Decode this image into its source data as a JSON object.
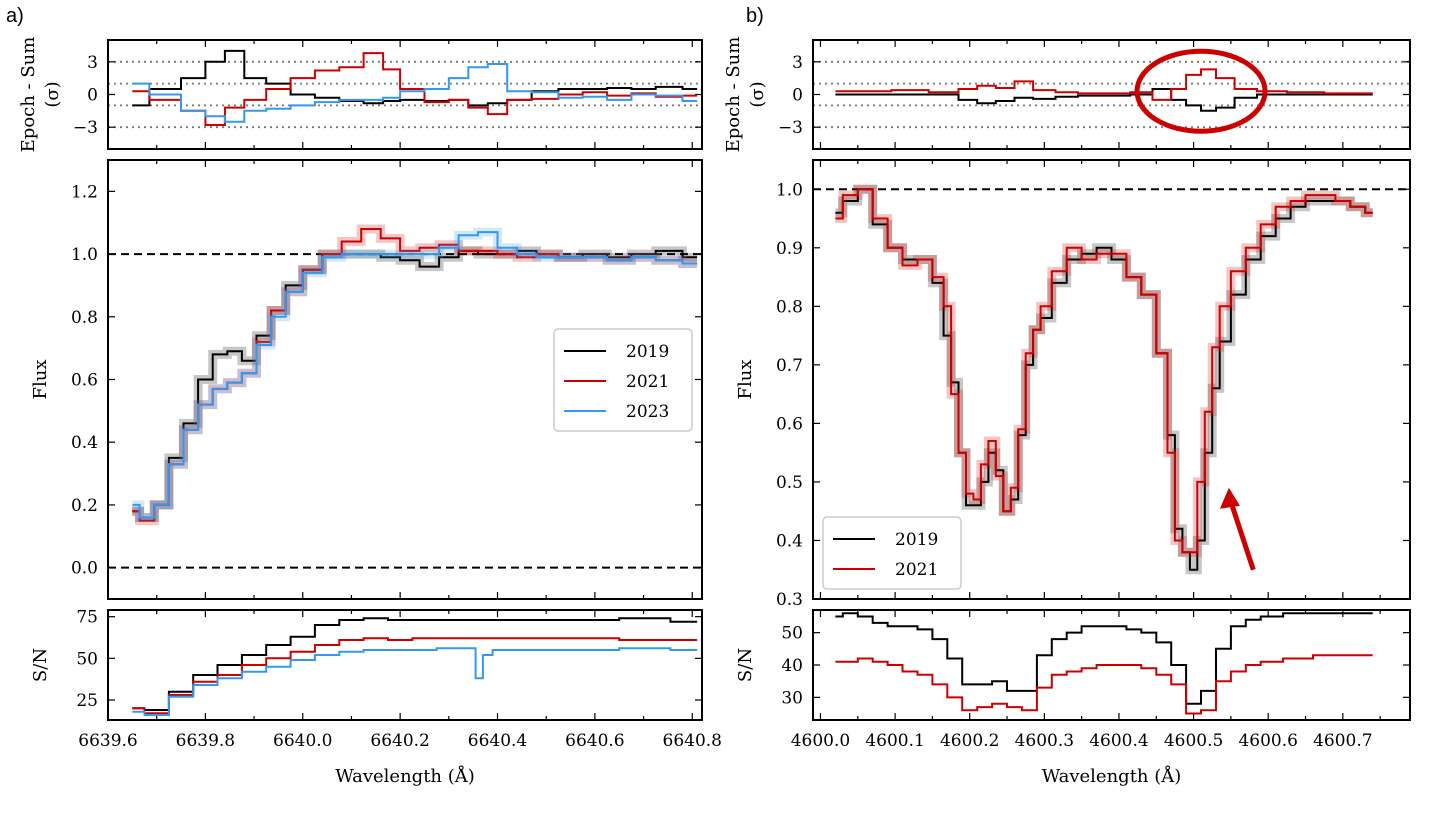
{
  "figure": {
    "panels": [
      "a)",
      "b)"
    ]
  },
  "colors": {
    "y2019": "#000000",
    "y2021": "#cc0000",
    "y2023": "#3399ee"
  },
  "chart_data": [
    {
      "id": "a-residual",
      "type": "line",
      "ylabel": "Epoch - Sum",
      "ylabel2": "(σ)",
      "xlim": [
        6639.6,
        6640.82
      ],
      "ylim": [
        -5,
        5
      ],
      "yticks": [
        {
          "v": 3,
          "t": "3"
        },
        {
          "v": 0,
          "t": "0"
        },
        {
          "v": -3,
          "t": "−3"
        }
      ],
      "hlines": [
        {
          "y": 3,
          "style": "dotted"
        },
        {
          "y": 1,
          "style": "dotted"
        },
        {
          "y": -1,
          "style": "dotted"
        },
        {
          "y": -3,
          "style": "dotted"
        }
      ],
      "x": [
        6639.65,
        6639.72,
        6639.78,
        6639.82,
        6639.86,
        6639.9,
        6639.95,
        6640.0,
        6640.05,
        6640.1,
        6640.15,
        6640.18,
        6640.22,
        6640.28,
        6640.32,
        6640.36,
        6640.4,
        6640.44,
        6640.5,
        6640.55,
        6640.6,
        6640.65,
        6640.7,
        6640.75,
        6640.81
      ],
      "series": [
        {
          "name": "2019",
          "color": "#000000",
          "values": [
            -1,
            0.5,
            1.5,
            3,
            4,
            1.5,
            1,
            0,
            -0.3,
            -0.6,
            -0.8,
            -0.6,
            -0.5,
            -0.6,
            -0.5,
            -1,
            -0.8,
            -0.5,
            0.3,
            0.5,
            0.5,
            0.6,
            0.5,
            0.7,
            0.5
          ]
        },
        {
          "name": "2021",
          "color": "#cc0000",
          "values": [
            0.3,
            -0.5,
            -1.5,
            -2.8,
            -1.2,
            -0.5,
            0.5,
            1.5,
            2.2,
            2.5,
            3.8,
            2.3,
            0.5,
            -0.7,
            -0.5,
            -1.2,
            -1.8,
            -0.5,
            -0.4,
            0,
            0.2,
            -0.1,
            0.1,
            -0.2,
            -0.1
          ]
        },
        {
          "name": "2023",
          "color": "#3399ee",
          "values": [
            1,
            0,
            -1.5,
            -2,
            -2.5,
            -1.5,
            -1.3,
            -1,
            -0.7,
            -0.5,
            -0.5,
            -0.3,
            0.3,
            0.5,
            1.5,
            2.5,
            2.8,
            0.3,
            0.2,
            -0.3,
            -0.2,
            -0.5,
            0,
            -0.1,
            -0.6
          ]
        }
      ]
    },
    {
      "id": "a-flux",
      "type": "line",
      "ylabel": "Flux",
      "xlim": [
        6639.6,
        6640.82
      ],
      "ylim": [
        -0.1,
        1.3
      ],
      "yticks": [
        {
          "v": 0,
          "t": "0.0"
        },
        {
          "v": 0.2,
          "t": "0.2"
        },
        {
          "v": 0.4,
          "t": "0.4"
        },
        {
          "v": 0.6,
          "t": "0.6"
        },
        {
          "v": 0.8,
          "t": "0.8"
        },
        {
          "v": 1.0,
          "t": "1.0"
        },
        {
          "v": 1.2,
          "t": "1.2"
        }
      ],
      "hlines": [
        {
          "y": 1.0,
          "style": "dashed"
        },
        {
          "y": 0.0,
          "style": "dashed"
        }
      ],
      "legend": {
        "position": "center-right",
        "entries": [
          "2019",
          "2021",
          "2023"
        ]
      },
      "x": [
        6639.65,
        6639.68,
        6639.71,
        6639.74,
        6639.77,
        6639.8,
        6639.83,
        6639.86,
        6639.89,
        6639.92,
        6639.95,
        6639.98,
        6640.02,
        6640.06,
        6640.1,
        6640.14,
        6640.18,
        6640.22,
        6640.26,
        6640.3,
        6640.34,
        6640.38,
        6640.42,
        6640.46,
        6640.5,
        6640.55,
        6640.6,
        6640.65,
        6640.7,
        6640.75,
        6640.81
      ],
      "series": [
        {
          "name": "2019",
          "color": "#000000",
          "values": [
            0.18,
            0.16,
            0.2,
            0.35,
            0.46,
            0.6,
            0.68,
            0.69,
            0.66,
            0.74,
            0.82,
            0.9,
            0.95,
            1.0,
            1.0,
            1.0,
            0.99,
            0.98,
            0.96,
            0.99,
            1.01,
            1.0,
            1.0,
            1.01,
            1.0,
            0.99,
            1.0,
            0.99,
            1.0,
            1.01,
            0.99
          ]
        },
        {
          "name": "2021",
          "color": "#cc0000",
          "values": [
            0.18,
            0.15,
            0.2,
            0.33,
            0.44,
            0.52,
            0.57,
            0.59,
            0.62,
            0.72,
            0.82,
            0.88,
            0.95,
            1.0,
            1.04,
            1.08,
            1.05,
            1.01,
            1.02,
            1.03,
            1.01,
            1.01,
            1.0,
            0.99,
            1.0,
            0.99,
            0.99,
            0.98,
            0.99,
            0.98,
            0.97
          ]
        },
        {
          "name": "2023",
          "color": "#3399ee",
          "values": [
            0.2,
            0.16,
            0.2,
            0.33,
            0.44,
            0.52,
            0.57,
            0.59,
            0.62,
            0.71,
            0.8,
            0.88,
            0.94,
            0.99,
            1.0,
            1.0,
            1.0,
            1.0,
            1.0,
            1.02,
            1.06,
            1.07,
            1.02,
            1.0,
            0.99,
            0.99,
            0.99,
            0.98,
            0.99,
            0.98,
            0.97
          ]
        }
      ]
    },
    {
      "id": "a-sn",
      "type": "line",
      "ylabel": "S/N",
      "xlabel": "Wavelength (Å)",
      "xlim": [
        6639.6,
        6640.82
      ],
      "ylim": [
        13,
        79
      ],
      "yticks": [
        {
          "v": 25,
          "t": "25"
        },
        {
          "v": 50,
          "t": "50"
        },
        {
          "v": 75,
          "t": "75"
        }
      ],
      "xticks": [
        {
          "v": 6639.6,
          "t": "6639.6"
        },
        {
          "v": 6639.8,
          "t": "6639.8"
        },
        {
          "v": 6640.0,
          "t": "6640.0"
        },
        {
          "v": 6640.2,
          "t": "6640.2"
        },
        {
          "v": 6640.4,
          "t": "6640.4"
        },
        {
          "v": 6640.6,
          "t": "6640.6"
        },
        {
          "v": 6640.8,
          "t": "6640.8"
        }
      ],
      "x": [
        6639.65,
        6639.7,
        6639.75,
        6639.8,
        6639.85,
        6639.9,
        6639.95,
        6640.0,
        6640.05,
        6640.1,
        6640.15,
        6640.2,
        6640.25,
        6640.3,
        6640.35,
        6640.36,
        6640.38,
        6640.4,
        6640.5,
        6640.6,
        6640.7,
        6640.81
      ],
      "series": [
        {
          "name": "2019",
          "color": "#000000",
          "values": [
            20,
            19,
            30,
            40,
            46,
            52,
            58,
            63,
            70,
            73,
            74,
            73,
            73,
            73,
            73,
            73,
            73,
            73,
            73,
            73,
            74,
            72
          ]
        },
        {
          "name": "2021",
          "color": "#cc0000",
          "values": [
            20,
            17,
            28,
            36,
            40,
            46,
            50,
            54,
            58,
            61,
            62,
            61,
            62,
            62,
            62,
            62,
            62,
            62,
            62,
            62,
            61,
            61
          ]
        },
        {
          "name": "2023",
          "color": "#3399ee",
          "values": [
            18,
            16,
            27,
            34,
            38,
            42,
            45,
            49,
            52,
            54,
            55,
            55,
            55,
            56,
            56,
            38,
            52,
            55,
            55,
            55,
            56,
            55
          ]
        }
      ]
    },
    {
      "id": "b-residual",
      "type": "line",
      "ylabel": "Epoch - Sum",
      "ylabel2": "(σ)",
      "xlim": [
        3.99,
        4.79
      ],
      "xoffset": 4600,
      "ylim": [
        -5,
        5
      ],
      "yticks": [
        {
          "v": 3,
          "t": "3"
        },
        {
          "v": 0,
          "t": "0"
        },
        {
          "v": -3,
          "t": "−3"
        }
      ],
      "hlines": [
        {
          "y": 3,
          "style": "dotted"
        },
        {
          "y": 1,
          "style": "dotted"
        },
        {
          "y": -1,
          "style": "dotted"
        },
        {
          "y": -3,
          "style": "dotted"
        }
      ],
      "x": [
        4.02,
        4.07,
        4.12,
        4.17,
        4.2,
        4.22,
        4.25,
        4.27,
        4.3,
        4.33,
        4.36,
        4.4,
        4.43,
        4.46,
        4.48,
        4.5,
        4.52,
        4.54,
        4.57,
        4.6,
        4.65,
        4.7,
        4.74
      ],
      "series": [
        {
          "name": "2019",
          "color": "#000000",
          "values": [
            0,
            0,
            0,
            0,
            -0.5,
            -0.8,
            -0.6,
            -0.3,
            -0.4,
            -0.2,
            -0.1,
            -0.1,
            0,
            0.5,
            -0.5,
            -1,
            -1.5,
            -1.2,
            -0.3,
            0,
            0,
            0,
            0
          ]
        },
        {
          "name": "2021",
          "color": "#cc0000",
          "values": [
            0.3,
            0.3,
            0.4,
            0.2,
            0.5,
            0.8,
            0.6,
            1.2,
            0.4,
            0.2,
            0.1,
            0.1,
            0.2,
            -0.5,
            0.5,
            1.8,
            2.3,
            1.5,
            0.5,
            0.3,
            0.2,
            0.1,
            0.1
          ]
        }
      ],
      "annotation": {
        "shape": "ellipse",
        "color": "#cc0000",
        "center_x": 4.51,
        "center_y": 0.3
      }
    },
    {
      "id": "b-flux",
      "type": "line",
      "ylabel": "Flux",
      "xlim": [
        3.99,
        4.79
      ],
      "xoffset": 4600,
      "ylim": [
        0.3,
        1.05
      ],
      "yticks": [
        {
          "v": 0.3,
          "t": "0.3"
        },
        {
          "v": 0.4,
          "t": "0.4"
        },
        {
          "v": 0.5,
          "t": "0.5"
        },
        {
          "v": 0.6,
          "t": "0.6"
        },
        {
          "v": 0.7,
          "t": "0.7"
        },
        {
          "v": 0.8,
          "t": "0.8"
        },
        {
          "v": 0.9,
          "t": "0.9"
        },
        {
          "v": 1.0,
          "t": "1.0"
        }
      ],
      "hlines": [
        {
          "y": 1.0,
          "style": "dashed"
        }
      ],
      "legend": {
        "position": "lower-left",
        "entries": [
          "2019",
          "2021"
        ]
      },
      "x": [
        4.02,
        4.04,
        4.06,
        4.08,
        4.1,
        4.12,
        4.14,
        4.16,
        4.17,
        4.18,
        4.19,
        4.2,
        4.21,
        4.22,
        4.23,
        4.24,
        4.25,
        4.26,
        4.27,
        4.28,
        4.29,
        4.3,
        4.32,
        4.34,
        4.36,
        4.38,
        4.4,
        4.42,
        4.44,
        4.46,
        4.47,
        4.48,
        4.49,
        4.5,
        4.51,
        4.52,
        4.53,
        4.54,
        4.56,
        4.58,
        4.6,
        4.62,
        4.64,
        4.66,
        4.68,
        4.7,
        4.72,
        4.74
      ],
      "series": [
        {
          "name": "2019",
          "color": "#000000",
          "values": [
            0.96,
            0.98,
            1.0,
            0.94,
            0.9,
            0.88,
            0.88,
            0.84,
            0.75,
            0.67,
            0.55,
            0.46,
            0.46,
            0.5,
            0.55,
            0.52,
            0.45,
            0.47,
            0.58,
            0.7,
            0.76,
            0.78,
            0.84,
            0.88,
            0.89,
            0.9,
            0.88,
            0.85,
            0.82,
            0.72,
            0.58,
            0.42,
            0.38,
            0.35,
            0.4,
            0.55,
            0.66,
            0.74,
            0.82,
            0.88,
            0.92,
            0.95,
            0.97,
            0.98,
            0.98,
            0.98,
            0.97,
            0.96
          ]
        },
        {
          "name": "2021",
          "color": "#cc0000",
          "values": [
            0.95,
            0.99,
            1.0,
            0.95,
            0.9,
            0.87,
            0.88,
            0.85,
            0.8,
            0.65,
            0.55,
            0.48,
            0.47,
            0.53,
            0.57,
            0.51,
            0.45,
            0.49,
            0.59,
            0.72,
            0.76,
            0.8,
            0.86,
            0.9,
            0.88,
            0.89,
            0.89,
            0.85,
            0.82,
            0.72,
            0.55,
            0.4,
            0.38,
            0.38,
            0.5,
            0.62,
            0.73,
            0.8,
            0.86,
            0.9,
            0.94,
            0.97,
            0.98,
            0.99,
            0.99,
            0.98,
            0.97,
            0.96
          ]
        }
      ],
      "annotation": {
        "shape": "arrow",
        "color": "#cc0000",
        "from_x": 4.58,
        "from_y": 0.35,
        "to_x": 4.55,
        "to_y": 0.49
      }
    },
    {
      "id": "b-sn",
      "type": "line",
      "ylabel": "S/N",
      "xlabel": "Wavelength (Å)",
      "xlim": [
        3.99,
        4.79
      ],
      "xoffset": 4600,
      "ylim": [
        23,
        57
      ],
      "yticks": [
        {
          "v": 30,
          "t": "30"
        },
        {
          "v": 40,
          "t": "40"
        },
        {
          "v": 50,
          "t": "50"
        }
      ],
      "xticks": [
        {
          "v": 4.0,
          "t": "4600.0"
        },
        {
          "v": 4.1,
          "t": "4600.1"
        },
        {
          "v": 4.2,
          "t": "4600.2"
        },
        {
          "v": 4.3,
          "t": "4600.3"
        },
        {
          "v": 4.4,
          "t": "4600.4"
        },
        {
          "v": 4.5,
          "t": "4600.5"
        },
        {
          "v": 4.6,
          "t": "4600.6"
        },
        {
          "v": 4.7,
          "t": "4600.7"
        }
      ],
      "x": [
        4.02,
        4.04,
        4.06,
        4.08,
        4.1,
        4.12,
        4.14,
        4.16,
        4.18,
        4.2,
        4.22,
        4.24,
        4.26,
        4.28,
        4.3,
        4.32,
        4.34,
        4.36,
        4.38,
        4.4,
        4.42,
        4.44,
        4.46,
        4.48,
        4.5,
        4.52,
        4.54,
        4.56,
        4.58,
        4.6,
        4.64,
        4.68,
        4.72,
        4.74
      ],
      "series": [
        {
          "name": "2019",
          "color": "#000000",
          "values": [
            55,
            56,
            55,
            53,
            52,
            52,
            51,
            48,
            42,
            34,
            34,
            35,
            32,
            32,
            43,
            48,
            50,
            52,
            52,
            52,
            51,
            50,
            47,
            40,
            28,
            32,
            45,
            52,
            54,
            55,
            56,
            56,
            56,
            56
          ]
        },
        {
          "name": "2021",
          "color": "#cc0000",
          "values": [
            41,
            41,
            42,
            41,
            40,
            38,
            37,
            34,
            30,
            26,
            27,
            28,
            27,
            26,
            33,
            37,
            38,
            39,
            40,
            40,
            40,
            39,
            37,
            34,
            25,
            26,
            35,
            38,
            40,
            41,
            42,
            43,
            43,
            43
          ]
        }
      ]
    }
  ]
}
